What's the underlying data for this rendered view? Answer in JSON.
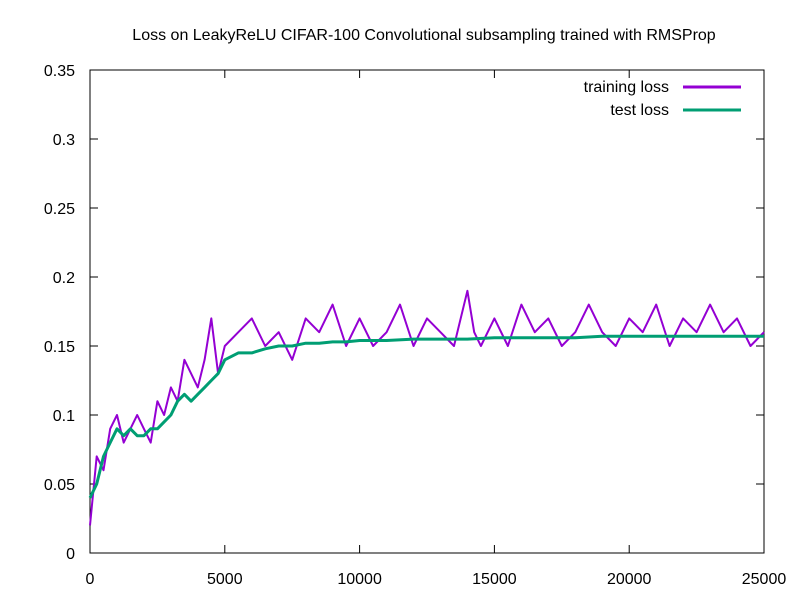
{
  "chart_data": {
    "type": "line",
    "title": "Loss on LeakyReLU CIFAR-100 Convolutional subsampling trained with RMSProp",
    "xlabel": "",
    "ylabel": "",
    "xlim": [
      0,
      25000
    ],
    "ylim": [
      0,
      0.35
    ],
    "xticks": [
      0,
      5000,
      10000,
      15000,
      20000,
      25000
    ],
    "xtick_labels": [
      "0",
      "5000",
      "10000",
      "15000",
      "20000",
      "25000"
    ],
    "yticks": [
      0,
      0.05,
      0.1,
      0.15,
      0.2,
      0.25,
      0.3,
      0.35
    ],
    "ytick_labels": [
      "0",
      "0.05",
      "0.1",
      "0.15",
      "0.2",
      "0.25",
      "0.3",
      "0.35"
    ],
    "grid": false,
    "legend_position": "top-right",
    "series": [
      {
        "name": "training loss",
        "color": "#9400d3",
        "x": [
          0,
          250,
          500,
          750,
          1000,
          1250,
          1500,
          1750,
          2000,
          2250,
          2500,
          2750,
          3000,
          3250,
          3500,
          3750,
          4000,
          4250,
          4500,
          4750,
          5000,
          5500,
          6000,
          6500,
          7000,
          7500,
          8000,
          8500,
          9000,
          9500,
          10000,
          10500,
          11000,
          11500,
          12000,
          12500,
          13000,
          13500,
          14000,
          14250,
          14500,
          15000,
          15500,
          16000,
          16500,
          17000,
          17500,
          18000,
          18500,
          19000,
          19500,
          20000,
          20500,
          21000,
          21500,
          22000,
          22500,
          23000,
          23500,
          24000,
          24500,
          25000
        ],
        "values": [
          0.02,
          0.07,
          0.06,
          0.09,
          0.1,
          0.08,
          0.09,
          0.1,
          0.09,
          0.08,
          0.11,
          0.1,
          0.12,
          0.11,
          0.14,
          0.13,
          0.12,
          0.14,
          0.17,
          0.13,
          0.15,
          0.16,
          0.17,
          0.15,
          0.16,
          0.14,
          0.17,
          0.16,
          0.18,
          0.15,
          0.17,
          0.15,
          0.16,
          0.18,
          0.15,
          0.17,
          0.16,
          0.15,
          0.19,
          0.16,
          0.15,
          0.17,
          0.15,
          0.18,
          0.16,
          0.17,
          0.15,
          0.16,
          0.18,
          0.16,
          0.15,
          0.17,
          0.16,
          0.18,
          0.15,
          0.17,
          0.16,
          0.18,
          0.16,
          0.17,
          0.15,
          0.16
        ]
      },
      {
        "name": "test loss",
        "color": "#009e73",
        "x": [
          0,
          250,
          500,
          750,
          1000,
          1250,
          1500,
          1750,
          2000,
          2250,
          2500,
          2750,
          3000,
          3250,
          3500,
          3750,
          4000,
          4250,
          4500,
          4750,
          5000,
          5500,
          6000,
          6500,
          7000,
          7500,
          8000,
          8500,
          9000,
          9500,
          10000,
          11000,
          12000,
          13000,
          14000,
          15000,
          16000,
          17000,
          18000,
          19000,
          20000,
          21000,
          22000,
          23000,
          24000,
          25000
        ],
        "values": [
          0.04,
          0.05,
          0.07,
          0.08,
          0.09,
          0.085,
          0.09,
          0.085,
          0.085,
          0.09,
          0.09,
          0.095,
          0.1,
          0.11,
          0.115,
          0.11,
          0.115,
          0.12,
          0.125,
          0.13,
          0.14,
          0.145,
          0.145,
          0.148,
          0.15,
          0.15,
          0.152,
          0.152,
          0.153,
          0.153,
          0.154,
          0.154,
          0.155,
          0.155,
          0.155,
          0.156,
          0.156,
          0.156,
          0.156,
          0.157,
          0.157,
          0.157,
          0.157,
          0.157,
          0.157,
          0.157
        ]
      }
    ]
  }
}
